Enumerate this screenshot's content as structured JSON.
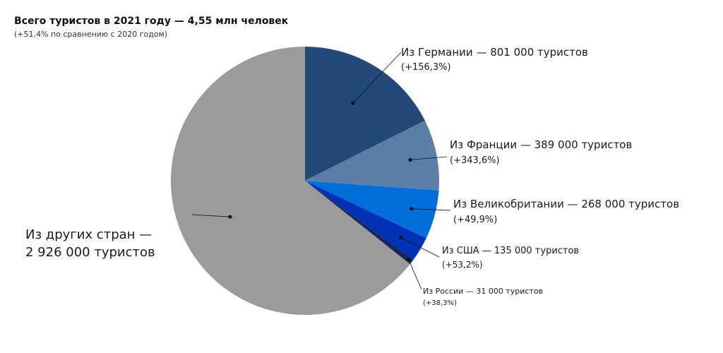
{
  "chart_data": {
    "type": "pie",
    "title": "Всего туристов в 2021 году — 4,55 млн человек",
    "subtitle": "(+51,4% по сравнению с 2020 годом)",
    "start_angle_deg": 0,
    "direction": "clockwise",
    "slices": [
      {
        "label": "Из Германии — 801 000 туристов",
        "change": "(+156,3%)",
        "value": 801000,
        "color": "#234a77"
      },
      {
        "label": "Из Франции — 389 000 туристов",
        "change": "(+343,6%)",
        "value": 389000,
        "color": "#5b7fa6"
      },
      {
        "label": "Из Великобритании — 268 000 туристов",
        "change": "(+49,9%)",
        "value": 268000,
        "color": "#006fdb"
      },
      {
        "label": "Из США — 135 000 туристов",
        "change": "(+53,2%)",
        "value": 135000,
        "color": "#0132b6"
      },
      {
        "label": "Из России — 31 000 туристов",
        "change": "(+38,3%)",
        "value": 31000,
        "color": "#15285c"
      },
      {
        "label": "Из других стран —",
        "label_line2": "2 926 000 туристов",
        "value": 2926000,
        "color": "#9b9b9b"
      }
    ]
  }
}
